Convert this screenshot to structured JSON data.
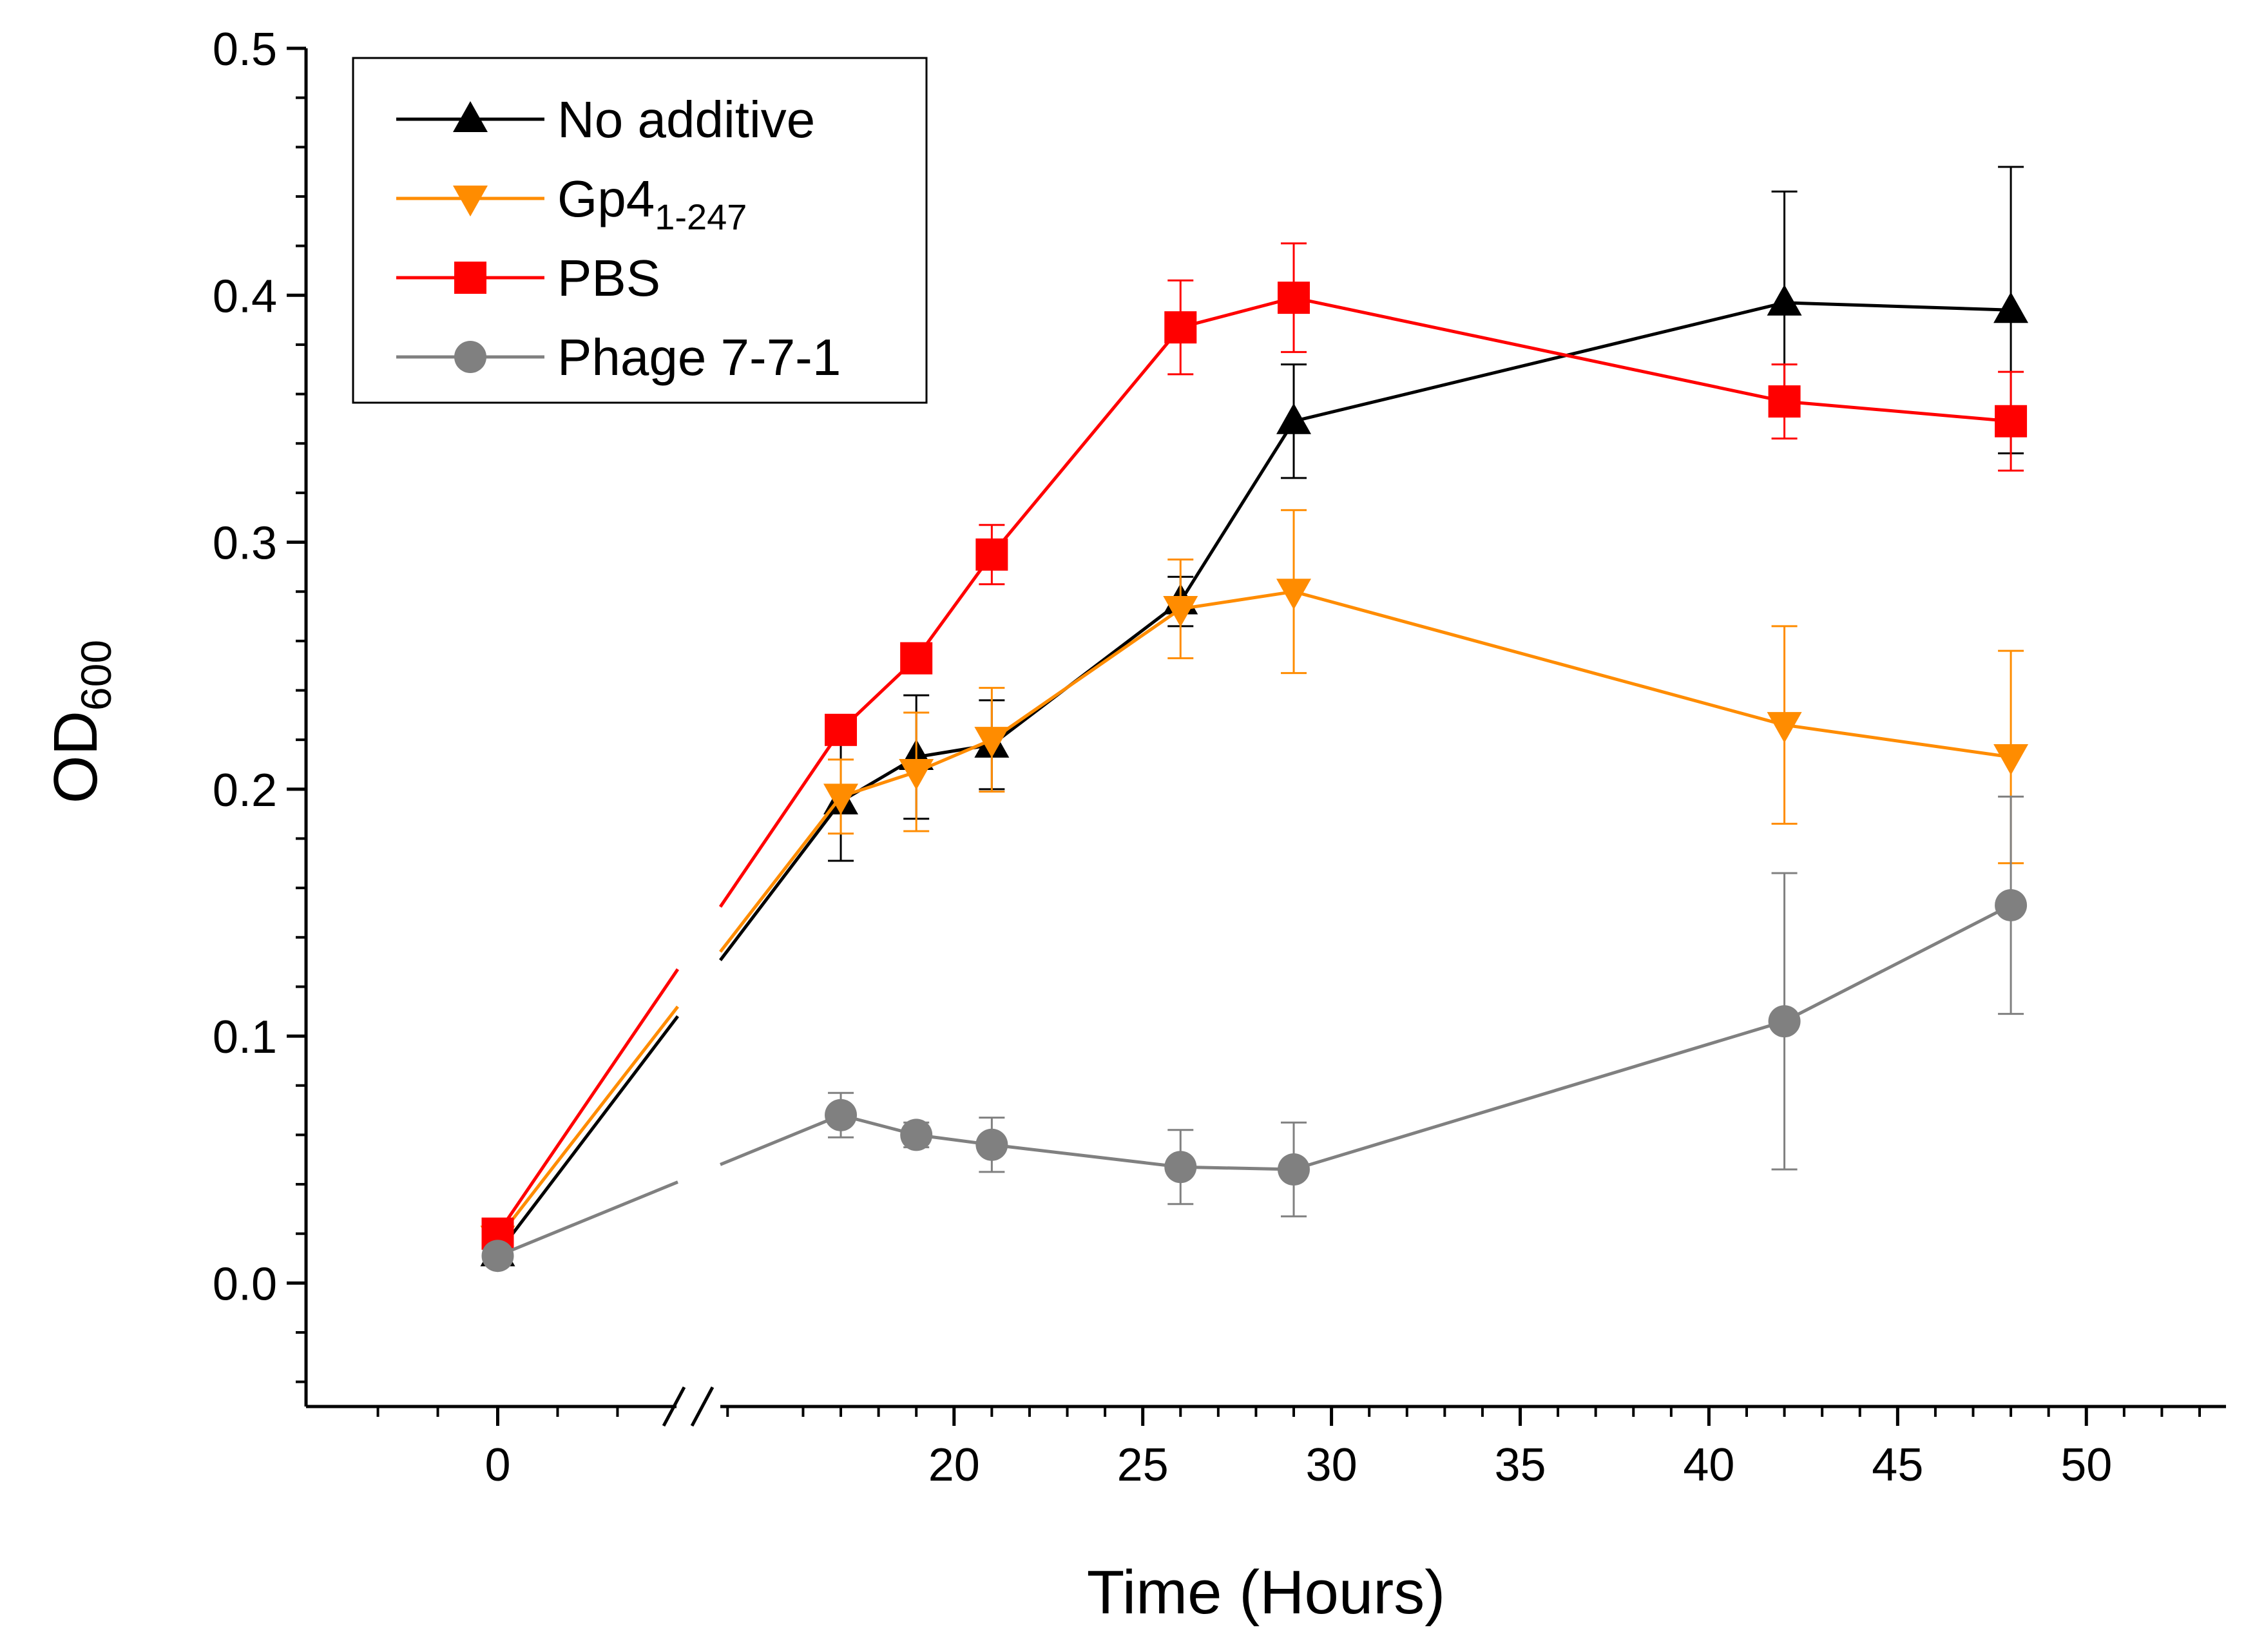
{
  "chart_data": {
    "type": "line",
    "xlabel": "Time (Hours)",
    "ylabel": {
      "main": "OD",
      "sub": "600"
    },
    "x_axis": {
      "broken": true,
      "segments": [
        {
          "range": [
            -3.2,
            3.2
          ],
          "ticks": [
            0
          ]
        },
        {
          "range": [
            13.5,
            53.7
          ],
          "ticks": [
            20,
            25,
            30,
            35,
            40,
            45,
            50
          ]
        }
      ]
    },
    "ylim": [
      -0.05,
      0.5
    ],
    "y_ticks": [
      0.0,
      0.1,
      0.2,
      0.3,
      0.4,
      0.5
    ],
    "y_tick_labels": [
      "0.0",
      "0.1",
      "0.2",
      "0.3",
      "0.4",
      "0.5"
    ],
    "legend_position": "top-left",
    "grid": false,
    "series": [
      {
        "name": "No additive",
        "name_main": "No additive",
        "name_sub": "",
        "color": "#000000",
        "marker": "triangle-up",
        "x": [
          0,
          17,
          19,
          21,
          26,
          29,
          42,
          48
        ],
        "y": [
          0.012,
          0.195,
          0.213,
          0.218,
          0.276,
          0.349,
          0.397,
          0.394
        ],
        "err": [
          0.004,
          0.024,
          0.025,
          0.018,
          0.01,
          0.023,
          0.045,
          0.058
        ]
      },
      {
        "name": "Gp41-247",
        "name_main": "Gp4",
        "name_sub": "1-247",
        "color": "#FF8C00",
        "marker": "triangle-down",
        "x": [
          0,
          17,
          19,
          21,
          26,
          29,
          42,
          48
        ],
        "y": [
          0.018,
          0.197,
          0.207,
          0.22,
          0.273,
          0.28,
          0.226,
          0.213
        ],
        "err": [
          0.004,
          0.015,
          0.024,
          0.021,
          0.02,
          0.033,
          0.04,
          0.043
        ]
      },
      {
        "name": "PBS",
        "name_main": "PBS",
        "name_sub": "",
        "color": "#FF0000",
        "marker": "square",
        "x": [
          0,
          17,
          19,
          21,
          26,
          29,
          42,
          48
        ],
        "y": [
          0.02,
          0.224,
          0.253,
          0.295,
          0.387,
          0.399,
          0.357,
          0.349
        ],
        "err": [
          0.003,
          0.006,
          0.006,
          0.012,
          0.019,
          0.022,
          0.015,
          0.02
        ]
      },
      {
        "name": "Phage 7-7-1",
        "name_main": "Phage 7-7-1",
        "name_sub": "",
        "color": "#808080",
        "marker": "circle",
        "x": [
          0,
          17,
          19,
          21,
          26,
          29,
          42,
          48
        ],
        "y": [
          0.011,
          0.068,
          0.06,
          0.056,
          0.047,
          0.046,
          0.106,
          0.153
        ],
        "err": [
          0.003,
          0.009,
          0.005,
          0.011,
          0.015,
          0.019,
          0.06,
          0.044
        ]
      }
    ]
  }
}
